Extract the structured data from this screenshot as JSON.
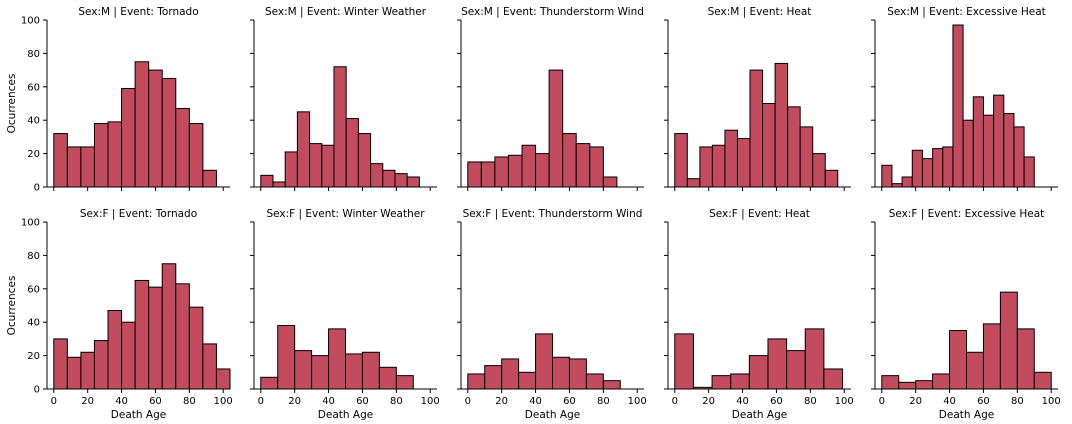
{
  "chart_data": {
    "type": "bar",
    "bar_color": "#c24b5e",
    "edge_color": "#000000",
    "xlabel": "Death Age",
    "ylabel": "Ocurrences",
    "xlim": [
      -4,
      104
    ],
    "ylim": [
      0,
      100
    ],
    "xticks": [
      0,
      20,
      40,
      60,
      80,
      100
    ],
    "yticks": [
      0,
      20,
      40,
      60,
      80,
      100
    ],
    "grid": false,
    "panels": [
      {
        "title": "Sex:M | Event: Tornado",
        "bins": [
          {
            "x0": 0,
            "x1": 8,
            "count": 32
          },
          {
            "x0": 8,
            "x1": 16,
            "count": 24
          },
          {
            "x0": 16,
            "x1": 24,
            "count": 24
          },
          {
            "x0": 24,
            "x1": 32,
            "count": 38
          },
          {
            "x0": 32,
            "x1": 40,
            "count": 39
          },
          {
            "x0": 40,
            "x1": 48,
            "count": 59
          },
          {
            "x0": 48,
            "x1": 56,
            "count": 75
          },
          {
            "x0": 56,
            "x1": 64,
            "count": 70
          },
          {
            "x0": 64,
            "x1": 72,
            "count": 65
          },
          {
            "x0": 72,
            "x1": 80,
            "count": 47
          },
          {
            "x0": 80,
            "x1": 88,
            "count": 38
          },
          {
            "x0": 88,
            "x1": 96,
            "count": 10
          }
        ]
      },
      {
        "title": "Sex:M | Event: Winter Weather",
        "bins": [
          {
            "x0": 0,
            "x1": 7.2,
            "count": 7
          },
          {
            "x0": 7.2,
            "x1": 14.4,
            "count": 3
          },
          {
            "x0": 14.4,
            "x1": 21.6,
            "count": 21
          },
          {
            "x0": 21.6,
            "x1": 28.8,
            "count": 45
          },
          {
            "x0": 28.8,
            "x1": 36,
            "count": 26
          },
          {
            "x0": 36,
            "x1": 43.2,
            "count": 25
          },
          {
            "x0": 43.2,
            "x1": 50.4,
            "count": 72
          },
          {
            "x0": 50.4,
            "x1": 57.6,
            "count": 41
          },
          {
            "x0": 57.6,
            "x1": 64.8,
            "count": 32
          },
          {
            "x0": 64.8,
            "x1": 72,
            "count": 14
          },
          {
            "x0": 72,
            "x1": 79.2,
            "count": 10
          },
          {
            "x0": 79.2,
            "x1": 86.4,
            "count": 8
          },
          {
            "x0": 86.4,
            "x1": 93.6,
            "count": 6
          }
        ]
      },
      {
        "title": "Sex:M | Event: Thunderstorm Wind",
        "bins": [
          {
            "x0": 0,
            "x1": 8,
            "count": 15
          },
          {
            "x0": 8,
            "x1": 16,
            "count": 15
          },
          {
            "x0": 16,
            "x1": 24,
            "count": 18
          },
          {
            "x0": 24,
            "x1": 32,
            "count": 19
          },
          {
            "x0": 32,
            "x1": 40,
            "count": 25
          },
          {
            "x0": 40,
            "x1": 48,
            "count": 20
          },
          {
            "x0": 48,
            "x1": 56,
            "count": 70
          },
          {
            "x0": 56,
            "x1": 64,
            "count": 32
          },
          {
            "x0": 64,
            "x1": 72,
            "count": 26
          },
          {
            "x0": 72,
            "x1": 80,
            "count": 24
          },
          {
            "x0": 80,
            "x1": 88,
            "count": 6
          }
        ]
      },
      {
        "title": "Sex:M | Event: Heat",
        "bins": [
          {
            "x0": 0,
            "x1": 7.4,
            "count": 32
          },
          {
            "x0": 7.4,
            "x1": 14.8,
            "count": 5
          },
          {
            "x0": 14.8,
            "x1": 22.2,
            "count": 24
          },
          {
            "x0": 22.2,
            "x1": 29.6,
            "count": 25
          },
          {
            "x0": 29.6,
            "x1": 37,
            "count": 34
          },
          {
            "x0": 37,
            "x1": 44.4,
            "count": 29
          },
          {
            "x0": 44.4,
            "x1": 51.8,
            "count": 70
          },
          {
            "x0": 51.8,
            "x1": 59.2,
            "count": 50
          },
          {
            "x0": 59.2,
            "x1": 66.6,
            "count": 74
          },
          {
            "x0": 66.6,
            "x1": 74,
            "count": 48
          },
          {
            "x0": 74,
            "x1": 81.4,
            "count": 36
          },
          {
            "x0": 81.4,
            "x1": 88.8,
            "count": 20
          },
          {
            "x0": 88.8,
            "x1": 96.2,
            "count": 10
          }
        ]
      },
      {
        "title": "Sex:M | Event: Excessive Heat",
        "bins": [
          {
            "x0": 0,
            "x1": 6,
            "count": 13
          },
          {
            "x0": 6,
            "x1": 12,
            "count": 2
          },
          {
            "x0": 12,
            "x1": 18,
            "count": 6
          },
          {
            "x0": 18,
            "x1": 24,
            "count": 22
          },
          {
            "x0": 24,
            "x1": 30,
            "count": 17
          },
          {
            "x0": 30,
            "x1": 36,
            "count": 23
          },
          {
            "x0": 36,
            "x1": 42,
            "count": 24
          },
          {
            "x0": 42,
            "x1": 48,
            "count": 97
          },
          {
            "x0": 48,
            "x1": 54,
            "count": 40
          },
          {
            "x0": 54,
            "x1": 60,
            "count": 54
          },
          {
            "x0": 60,
            "x1": 66,
            "count": 43
          },
          {
            "x0": 66,
            "x1": 72,
            "count": 55
          },
          {
            "x0": 72,
            "x1": 78,
            "count": 44
          },
          {
            "x0": 78,
            "x1": 84,
            "count": 36
          },
          {
            "x0": 84,
            "x1": 90,
            "count": 18
          }
        ]
      },
      {
        "title": "Sex:F | Event: Tornado",
        "bins": [
          {
            "x0": 0,
            "x1": 8,
            "count": 30
          },
          {
            "x0": 8,
            "x1": 16,
            "count": 19
          },
          {
            "x0": 16,
            "x1": 24,
            "count": 22
          },
          {
            "x0": 24,
            "x1": 32,
            "count": 29
          },
          {
            "x0": 32,
            "x1": 40,
            "count": 47
          },
          {
            "x0": 40,
            "x1": 48,
            "count": 40
          },
          {
            "x0": 48,
            "x1": 56,
            "count": 65
          },
          {
            "x0": 56,
            "x1": 64,
            "count": 61
          },
          {
            "x0": 64,
            "x1": 72,
            "count": 75
          },
          {
            "x0": 72,
            "x1": 80,
            "count": 63
          },
          {
            "x0": 80,
            "x1": 88,
            "count": 49
          },
          {
            "x0": 88,
            "x1": 96,
            "count": 27
          },
          {
            "x0": 96,
            "x1": 104,
            "count": 12
          }
        ]
      },
      {
        "title": "Sex:F | Event: Winter Weather",
        "bins": [
          {
            "x0": 0,
            "x1": 10,
            "count": 7
          },
          {
            "x0": 10,
            "x1": 20,
            "count": 38
          },
          {
            "x0": 20,
            "x1": 30,
            "count": 23
          },
          {
            "x0": 30,
            "x1": 40,
            "count": 20
          },
          {
            "x0": 40,
            "x1": 50,
            "count": 36
          },
          {
            "x0": 50,
            "x1": 60,
            "count": 21
          },
          {
            "x0": 60,
            "x1": 70,
            "count": 22
          },
          {
            "x0": 70,
            "x1": 80,
            "count": 13
          },
          {
            "x0": 80,
            "x1": 90,
            "count": 8
          }
        ]
      },
      {
        "title": "Sex:F | Event: Thunderstorm Wind",
        "bins": [
          {
            "x0": 0,
            "x1": 10,
            "count": 9
          },
          {
            "x0": 10,
            "x1": 20,
            "count": 14
          },
          {
            "x0": 20,
            "x1": 30,
            "count": 18
          },
          {
            "x0": 30,
            "x1": 40,
            "count": 10
          },
          {
            "x0": 40,
            "x1": 50,
            "count": 33
          },
          {
            "x0": 50,
            "x1": 60,
            "count": 19
          },
          {
            "x0": 60,
            "x1": 70,
            "count": 18
          },
          {
            "x0": 70,
            "x1": 80,
            "count": 9
          },
          {
            "x0": 80,
            "x1": 90,
            "count": 5
          }
        ]
      },
      {
        "title": "Sex:F | Event: Heat",
        "bins": [
          {
            "x0": 0,
            "x1": 11,
            "count": 33
          },
          {
            "x0": 11,
            "x1": 22,
            "count": 1
          },
          {
            "x0": 22,
            "x1": 33,
            "count": 8
          },
          {
            "x0": 33,
            "x1": 44,
            "count": 9
          },
          {
            "x0": 44,
            "x1": 55,
            "count": 20
          },
          {
            "x0": 55,
            "x1": 66,
            "count": 30
          },
          {
            "x0": 66,
            "x1": 77,
            "count": 23
          },
          {
            "x0": 77,
            "x1": 88,
            "count": 36
          },
          {
            "x0": 88,
            "x1": 99,
            "count": 12
          }
        ]
      },
      {
        "title": "Sex:F | Event: Excessive Heat",
        "bins": [
          {
            "x0": 0,
            "x1": 10,
            "count": 8
          },
          {
            "x0": 10,
            "x1": 20,
            "count": 4
          },
          {
            "x0": 20,
            "x1": 30,
            "count": 5
          },
          {
            "x0": 30,
            "x1": 40,
            "count": 9
          },
          {
            "x0": 40,
            "x1": 50,
            "count": 35
          },
          {
            "x0": 50,
            "x1": 60,
            "count": 22
          },
          {
            "x0": 60,
            "x1": 70,
            "count": 39
          },
          {
            "x0": 70,
            "x1": 80,
            "count": 58
          },
          {
            "x0": 80,
            "x1": 90,
            "count": 36
          },
          {
            "x0": 90,
            "x1": 100,
            "count": 10
          }
        ]
      }
    ]
  }
}
